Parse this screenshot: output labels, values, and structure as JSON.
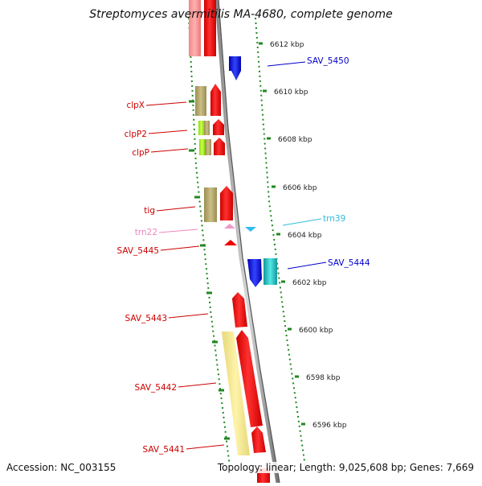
{
  "title": "Streptomyces avermitilis MA-4680, complete genome",
  "footer": {
    "accession": "Accession: NC_003155",
    "summary": "Topology: linear; Length: 9,025,608 bp; Genes: 7,669"
  },
  "scale_unit": "kbp",
  "ticks": [
    {
      "value": 6612,
      "label": "6612 kbp"
    },
    {
      "value": 6610,
      "label": "6610 kbp"
    },
    {
      "value": 6608,
      "label": "6608 kbp"
    },
    {
      "value": 6606,
      "label": "6606 kbp"
    },
    {
      "value": 6604,
      "label": "6604 kbp"
    },
    {
      "value": 6602,
      "label": "6602 kbp"
    },
    {
      "value": 6600,
      "label": "6600 kbp"
    },
    {
      "value": 6598,
      "label": "6598 kbp"
    },
    {
      "value": 6596,
      "label": "6596 kbp"
    }
  ],
  "gene_labels": [
    {
      "name": "SAV_5450",
      "side": "right",
      "color": "#0000cc"
    },
    {
      "name": "clpX",
      "side": "left",
      "color": "#cc0000"
    },
    {
      "name": "clpP2",
      "side": "left",
      "color": "#cc0000"
    },
    {
      "name": "clpP",
      "side": "left",
      "color": "#cc0000"
    },
    {
      "name": "tig",
      "side": "left",
      "color": "#cc0000"
    },
    {
      "name": "trn39",
      "side": "right",
      "color": "#33bbdd"
    },
    {
      "name": "trn22",
      "side": "left",
      "color": "#ee88bb"
    },
    {
      "name": "SAV_5445",
      "side": "left",
      "color": "#cc0000"
    },
    {
      "name": "SAV_5444",
      "side": "right",
      "color": "#0000cc"
    },
    {
      "name": "SAV_5443",
      "side": "left",
      "color": "#cc0000"
    },
    {
      "name": "SAV_5442",
      "side": "left",
      "color": "#cc0000"
    },
    {
      "name": "SAV_5441",
      "side": "left",
      "color": "#cc0000"
    }
  ],
  "colors": {
    "forward_gene": "#ff0000",
    "reverse_gene": "#0000ee",
    "trna_reverse": "#33bbee",
    "trna_forward": "#ee99cc",
    "cds_olive": "#b3a66b",
    "cds_lightgreen": "#aaff22",
    "cds_pale": "#f2e68c",
    "cds_cyan": "#33cccc",
    "tick_green": "#228822"
  }
}
